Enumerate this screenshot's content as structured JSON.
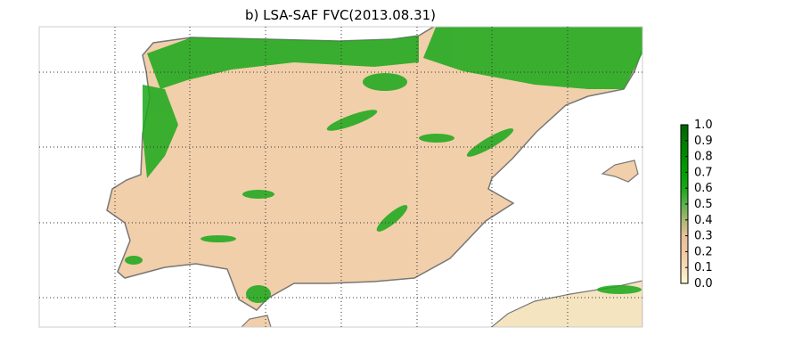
{
  "map": {
    "title": "b)  LSA-SAF FVC(2013.08.31)",
    "colorbar": {
      "lim": [
        0,
        1
      ],
      "ticks": [
        {
          "value": 0,
          "label": "0.0"
        },
        0.1,
        0.2,
        0.3,
        0.4,
        0.5,
        0.6,
        0.7,
        0.8,
        0.9,
        {
          "value": 1,
          "label": "1.0"
        }
      ],
      "colors": [
        "#fffad2",
        "#f8dcb8",
        "#f2c6a0",
        "#e8c09a",
        "#a8b870",
        "#5cb04a",
        "#18a818",
        "#00a000",
        "#008c00",
        "#007a00",
        "#006400"
      ]
    }
  }
}
